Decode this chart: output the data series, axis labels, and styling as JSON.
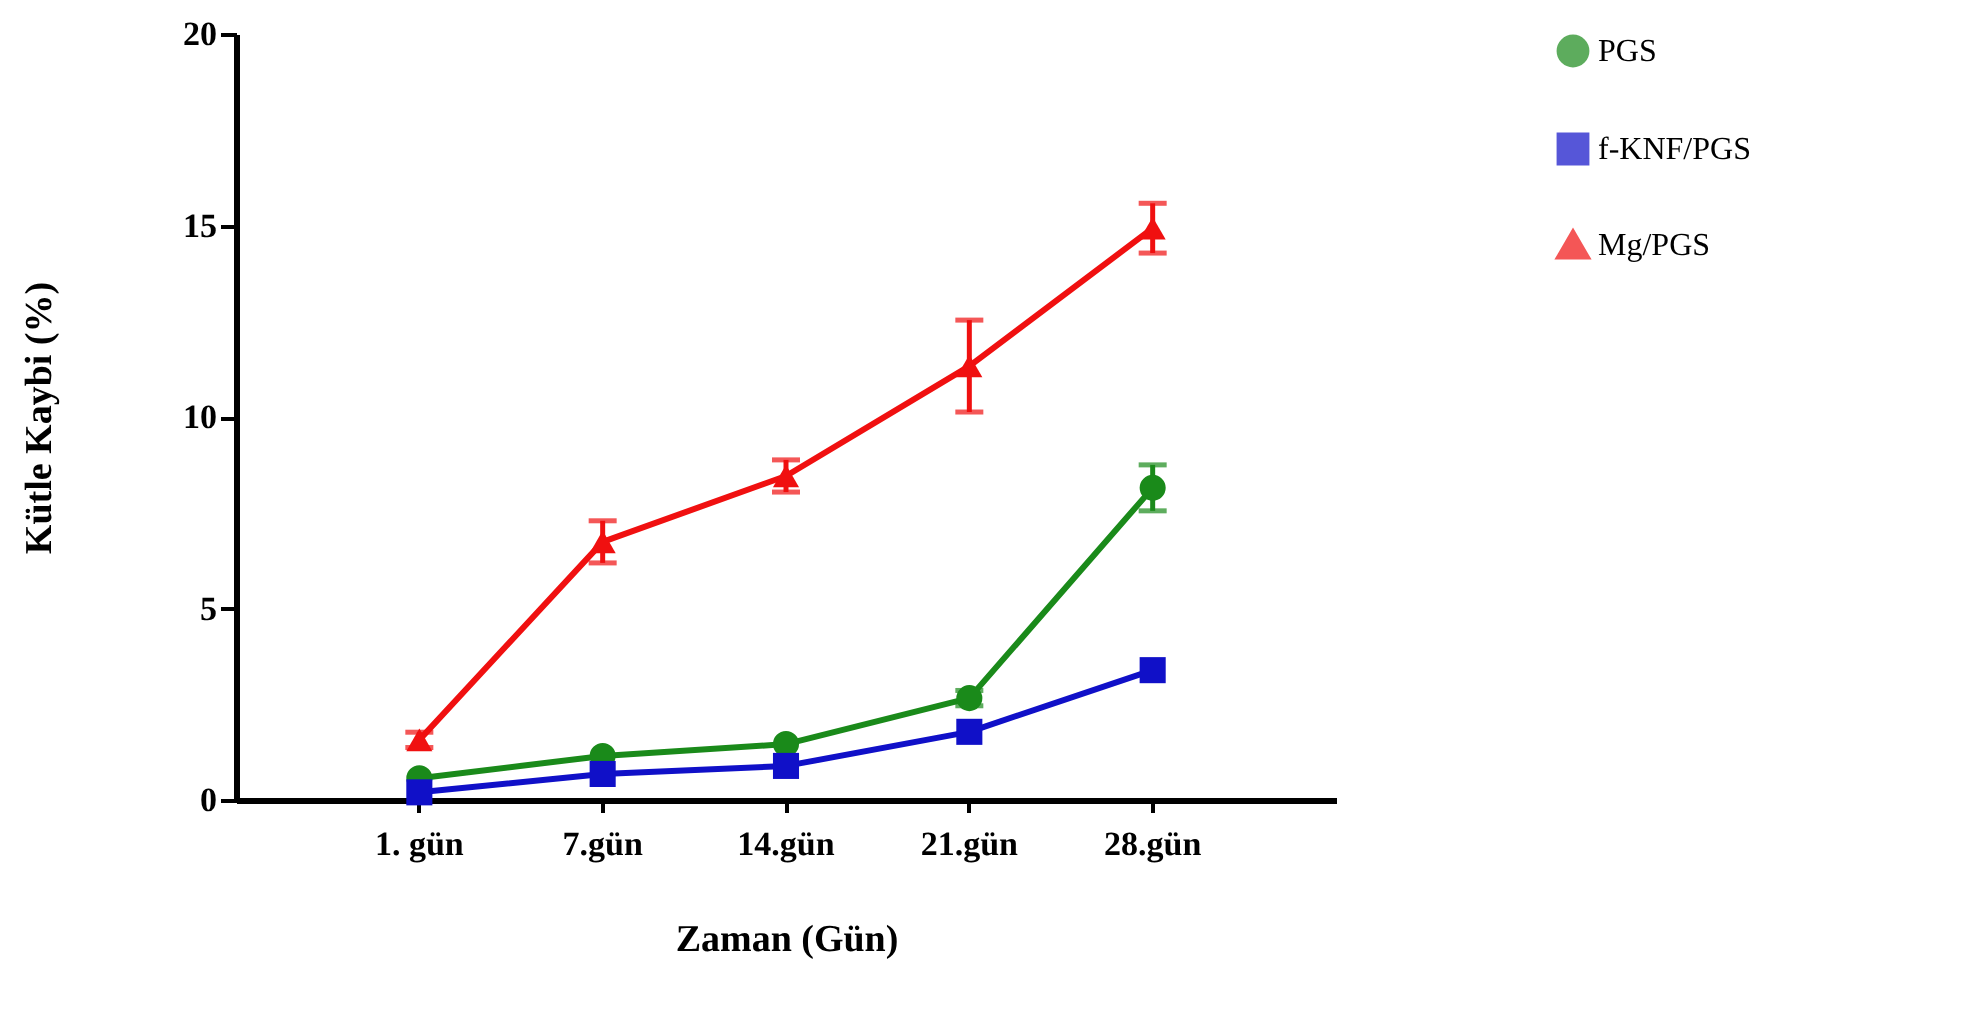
{
  "chart_data": {
    "type": "line",
    "xlabel": "Zaman (Gün)",
    "ylabel": "Kütle Kaybi (%)",
    "categories": [
      "1. gün",
      "7.gün",
      "14.gün",
      "21.gün",
      "28.gün"
    ],
    "ylim": [
      0,
      20
    ],
    "yticks": [
      0,
      5,
      10,
      15,
      20
    ],
    "legend": "right",
    "grid": false,
    "series": [
      {
        "name": "PGS",
        "color": "#1a8a1a",
        "marker": "circle",
        "values": [
          0.57,
          1.15,
          1.46,
          2.66,
          8.15
        ],
        "errors": [
          null,
          null,
          null,
          0.2,
          0.6
        ]
      },
      {
        "name": "f-KNF/PGS",
        "color": "#1010c8",
        "marker": "square",
        "values": [
          0.2,
          0.68,
          0.89,
          1.78,
          3.39
        ],
        "errors": [
          null,
          null,
          null,
          null,
          null
        ]
      },
      {
        "name": "Mg/PGS",
        "color": "#f01010",
        "marker": "triangle",
        "values": [
          1.57,
          6.74,
          8.46,
          11.33,
          14.93
        ],
        "errors": [
          0.2,
          0.55,
          0.42,
          1.2,
          0.65
        ]
      }
    ]
  }
}
